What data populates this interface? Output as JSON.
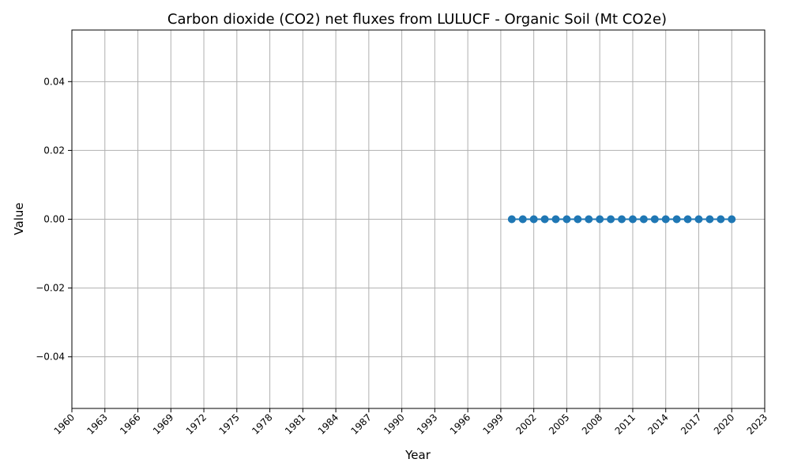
{
  "chart_data": {
    "type": "line",
    "title": "Carbon dioxide (CO2) net fluxes from LULUCF - Organic Soil (Mt CO2e)",
    "xlabel": "Year",
    "ylabel": "Value",
    "xlim": [
      1960,
      2023
    ],
    "ylim": [
      -0.055,
      0.055
    ],
    "xticks": [
      1960,
      1963,
      1966,
      1969,
      1972,
      1975,
      1978,
      1981,
      1984,
      1987,
      1990,
      1993,
      1996,
      1999,
      2002,
      2005,
      2008,
      2011,
      2014,
      2017,
      2020,
      2023
    ],
    "yticks": [
      -0.04,
      -0.02,
      0.0,
      0.02,
      0.04
    ],
    "ytick_labels": [
      "−0.04",
      "−0.02",
      "0.00",
      "0.02",
      "0.04"
    ],
    "grid": true,
    "series": [
      {
        "color": "#1f77b4",
        "marker": "circle",
        "x": [
          2000,
          2001,
          2002,
          2003,
          2004,
          2005,
          2006,
          2007,
          2008,
          2009,
          2010,
          2011,
          2012,
          2013,
          2014,
          2015,
          2016,
          2017,
          2018,
          2019,
          2020
        ],
        "y": [
          0,
          0,
          0,
          0,
          0,
          0,
          0,
          0,
          0,
          0,
          0,
          0,
          0,
          0,
          0,
          0,
          0,
          0,
          0,
          0,
          0
        ]
      }
    ]
  }
}
